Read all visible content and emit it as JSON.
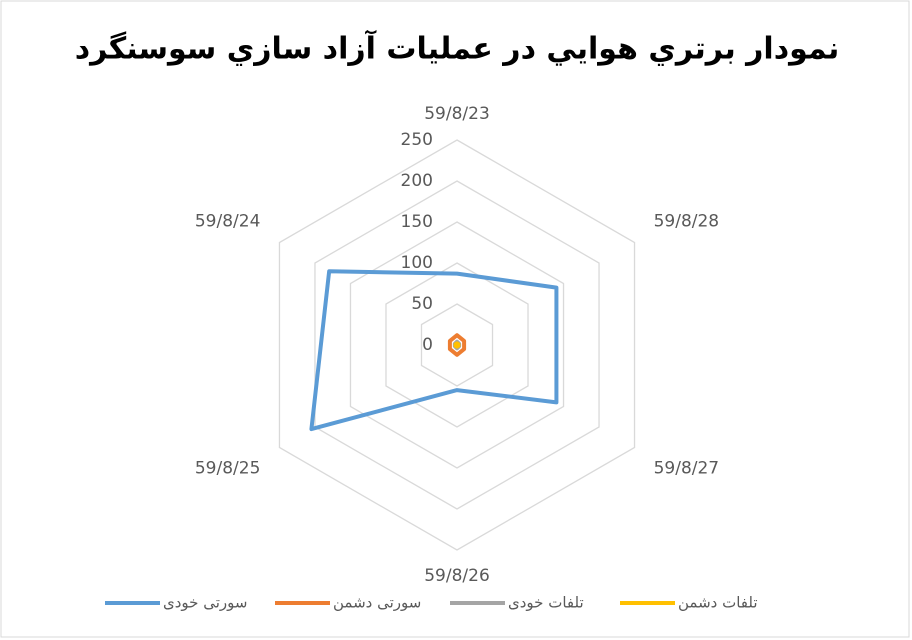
{
  "chart_data": {
    "type": "radar",
    "title": "نمودار برتري هوايي در عمليات آزاد سازي سوسنگرد",
    "categories": [
      "59/8/23",
      "59/8/28",
      "59/8/27",
      "59/8/26",
      "59/8/25",
      "59/8/24"
    ],
    "series": [
      {
        "name": "سورتی خودی",
        "color": "#5b9bd5",
        "values": [
          87,
          140,
          140,
          55,
          205,
          180
        ]
      },
      {
        "name": "سورتی دشمن",
        "color": "#ed7d31",
        "values": [
          12,
          10,
          10,
          12,
          10,
          10
        ]
      },
      {
        "name": "تلفات خودی",
        "color": "#a5a5a5",
        "values": [
          4,
          3,
          3,
          4,
          3,
          3
        ]
      },
      {
        "name": "تلفات دشمن",
        "color": "#ffc000",
        "values": [
          2,
          2,
          2,
          2,
          2,
          2
        ]
      }
    ],
    "ylim": [
      0,
      250
    ],
    "yticks": [
      0,
      50,
      100,
      150,
      200,
      250
    ],
    "grid": true,
    "legend": "bottom"
  }
}
